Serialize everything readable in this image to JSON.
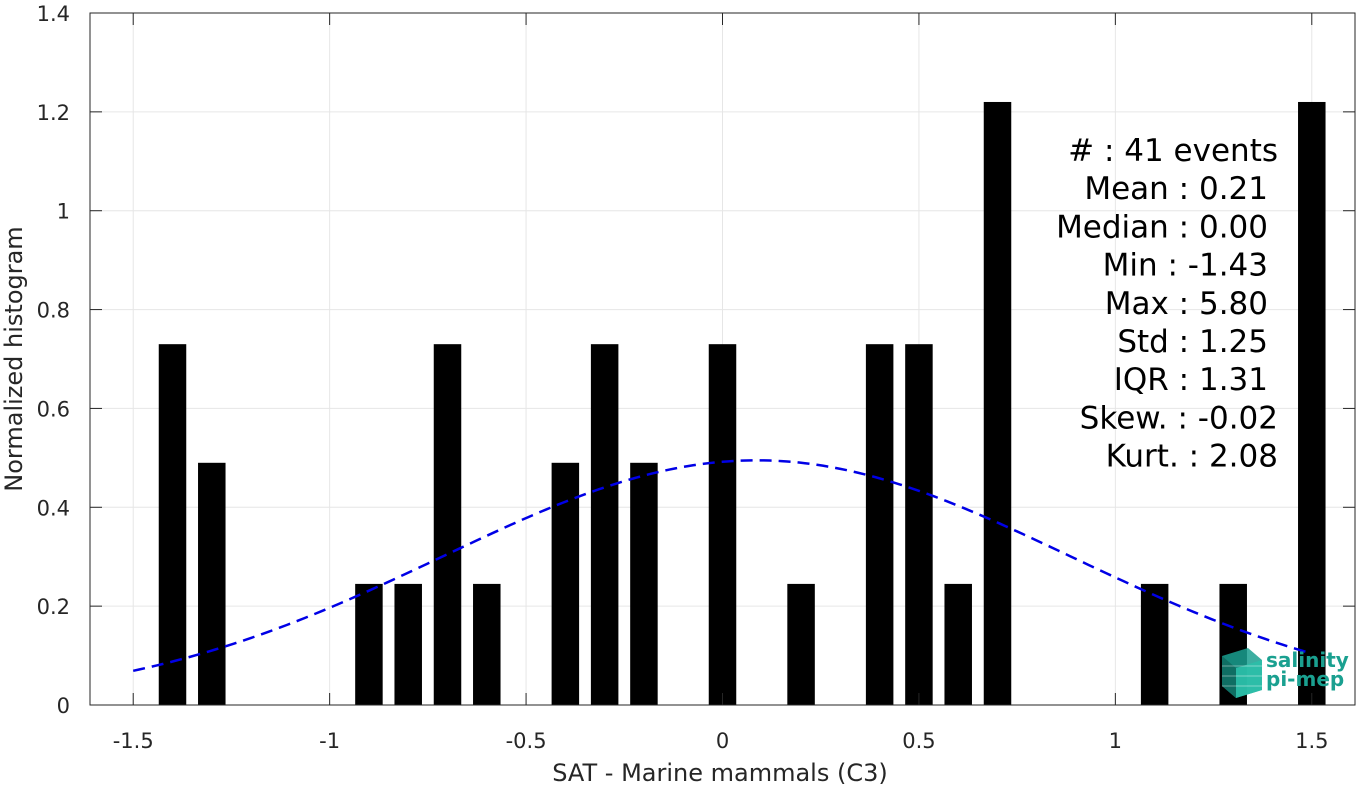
{
  "chart_data": {
    "type": "bar",
    "xlabel": "SAT - Marine mammals (C3)",
    "ylabel": "Normalized histogram",
    "xlim": [
      -1.61,
      1.61
    ],
    "ylim": [
      0,
      1.4
    ],
    "x_ticks": [
      "-1.5",
      "-1",
      "-0.5",
      "0",
      "0.5",
      "1",
      "1.5"
    ],
    "x_tick_values": [
      -1.5,
      -1,
      -0.5,
      0,
      0.5,
      1,
      1.5
    ],
    "y_ticks": [
      "0",
      "0.2",
      "0.4",
      "0.6",
      "0.8",
      "1",
      "1.2",
      "1.4"
    ],
    "y_tick_values": [
      0,
      0.2,
      0.4,
      0.6,
      0.8,
      1,
      1.2,
      1.4
    ],
    "grid": true,
    "bar_color": "#000000",
    "bar_width": 0.07,
    "bars": [
      {
        "x": -1.4,
        "y": 0.73
      },
      {
        "x": -1.3,
        "y": 0.49
      },
      {
        "x": -0.9,
        "y": 0.245
      },
      {
        "x": -0.8,
        "y": 0.245
      },
      {
        "x": -0.7,
        "y": 0.73
      },
      {
        "x": -0.6,
        "y": 0.245
      },
      {
        "x": -0.4,
        "y": 0.49
      },
      {
        "x": -0.3,
        "y": 0.73
      },
      {
        "x": -0.2,
        "y": 0.49
      },
      {
        "x": 0.0,
        "y": 0.73
      },
      {
        "x": 0.2,
        "y": 0.245
      },
      {
        "x": 0.4,
        "y": 0.73
      },
      {
        "x": 0.5,
        "y": 0.73
      },
      {
        "x": 0.6,
        "y": 0.245
      },
      {
        "x": 0.7,
        "y": 1.22
      },
      {
        "x": 1.1,
        "y": 0.245
      },
      {
        "x": 1.3,
        "y": 0.245
      },
      {
        "x": 1.5,
        "y": 1.22
      }
    ],
    "fit_curve": {
      "color": "#0000e6",
      "style": "dashed",
      "mean": 0.087,
      "std": 0.8,
      "peak": 0.495,
      "x_range": [
        -1.5,
        1.5
      ]
    },
    "stats": [
      {
        "label": "#  : 41 events"
      },
      {
        "label": "Mean : 0.21"
      },
      {
        "label": "Median : 0.00"
      },
      {
        "label": "Min : -1.43"
      },
      {
        "label": "Max : 5.80"
      },
      {
        "label": "Std : 1.25"
      },
      {
        "label": "IQR : 1.31"
      },
      {
        "label": "Skew. : -0.02"
      },
      {
        "label": "Kurt. : 2.08"
      }
    ]
  },
  "logo": {
    "line1": "salinity",
    "line2": "pi-mep",
    "color": "#1aa090"
  }
}
